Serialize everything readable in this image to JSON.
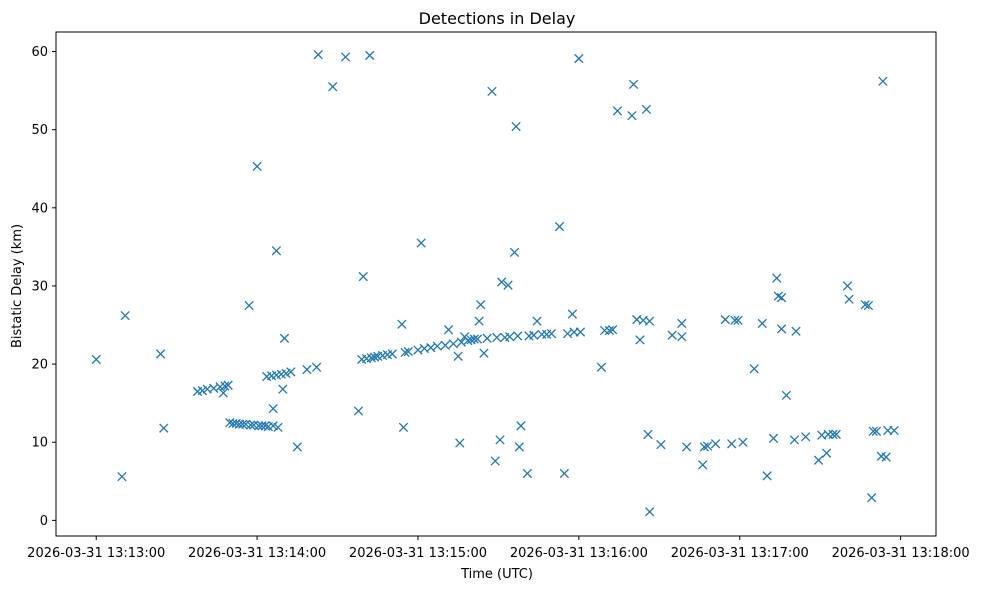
{
  "chart_data": {
    "type": "scatter",
    "title": "Detections in Delay",
    "xlabel": "Time (UTC)",
    "ylabel": "Bistatic Delay (km)",
    "marker": "x",
    "color": "#1f77b4",
    "x_unit": "minutes since 2026-03-31 13:13:00",
    "xlim": [
      -0.25,
      5.22
    ],
    "ylim": [
      -2.0,
      62.5
    ],
    "x_ticks": [
      {
        "value": 0,
        "label": "2026-03-31 13:13:00"
      },
      {
        "value": 1,
        "label": "2026-03-31 13:14:00"
      },
      {
        "value": 2,
        "label": "2026-03-31 13:15:00"
      },
      {
        "value": 3,
        "label": "2026-03-31 13:16:00"
      },
      {
        "value": 4,
        "label": "2026-03-31 13:17:00"
      },
      {
        "value": 5,
        "label": "2026-03-31 13:18:00"
      }
    ],
    "y_ticks": [
      {
        "value": 0,
        "label": "0"
      },
      {
        "value": 10,
        "label": "10"
      },
      {
        "value": 20,
        "label": "20"
      },
      {
        "value": 30,
        "label": "30"
      },
      {
        "value": 40,
        "label": "40"
      },
      {
        "value": 50,
        "label": "50"
      },
      {
        "value": 60,
        "label": "60"
      }
    ],
    "points": [
      [
        0.0,
        20.6
      ],
      [
        0.16,
        5.6
      ],
      [
        0.18,
        26.2
      ],
      [
        0.4,
        21.3
      ],
      [
        0.42,
        11.8
      ],
      [
        0.63,
        16.5
      ],
      [
        0.66,
        16.6
      ],
      [
        0.69,
        16.8
      ],
      [
        0.73,
        16.9
      ],
      [
        0.77,
        17.1
      ],
      [
        0.79,
        16.3
      ],
      [
        0.8,
        17.2
      ],
      [
        0.82,
        17.3
      ],
      [
        0.83,
        12.5
      ],
      [
        0.85,
        12.4
      ],
      [
        0.87,
        12.4
      ],
      [
        0.89,
        12.3
      ],
      [
        0.91,
        12.3
      ],
      [
        0.93,
        12.3
      ],
      [
        0.95,
        27.5
      ],
      [
        0.96,
        12.2
      ],
      [
        0.98,
        12.2
      ],
      [
        1.0,
        45.3
      ],
      [
        1.01,
        12.1
      ],
      [
        1.03,
        12.1
      ],
      [
        1.05,
        12.1
      ],
      [
        1.06,
        18.4
      ],
      [
        1.07,
        12.0
      ],
      [
        1.09,
        18.5
      ],
      [
        1.1,
        12.1
      ],
      [
        1.1,
        14.3
      ],
      [
        1.12,
        18.6
      ],
      [
        1.12,
        34.5
      ],
      [
        1.13,
        11.9
      ],
      [
        1.15,
        18.7
      ],
      [
        1.16,
        16.8
      ],
      [
        1.17,
        23.3
      ],
      [
        1.18,
        18.8
      ],
      [
        1.21,
        19.0
      ],
      [
        1.25,
        9.4
      ],
      [
        1.31,
        19.3
      ],
      [
        1.37,
        19.6
      ],
      [
        1.38,
        59.6
      ],
      [
        1.47,
        55.5
      ],
      [
        1.55,
        59.3
      ],
      [
        1.63,
        14.0
      ],
      [
        1.65,
        20.6
      ],
      [
        1.66,
        31.2
      ],
      [
        1.68,
        20.7
      ],
      [
        1.7,
        59.5
      ],
      [
        1.71,
        20.8
      ],
      [
        1.73,
        20.9
      ],
      [
        1.75,
        21.0
      ],
      [
        1.78,
        21.1
      ],
      [
        1.81,
        21.2
      ],
      [
        1.84,
        21.3
      ],
      [
        1.9,
        25.1
      ],
      [
        1.91,
        11.9
      ],
      [
        1.92,
        21.5
      ],
      [
        1.94,
        21.6
      ],
      [
        2.0,
        21.8
      ],
      [
        2.02,
        35.5
      ],
      [
        2.04,
        22.0
      ],
      [
        2.08,
        22.1
      ],
      [
        2.12,
        22.3
      ],
      [
        2.17,
        22.4
      ],
      [
        2.19,
        24.4
      ],
      [
        2.22,
        22.6
      ],
      [
        2.25,
        21.0
      ],
      [
        2.26,
        9.9
      ],
      [
        2.27,
        22.8
      ],
      [
        2.29,
        23.5
      ],
      [
        2.31,
        23.0
      ],
      [
        2.33,
        23.1
      ],
      [
        2.35,
        23.2
      ],
      [
        2.37,
        23.2
      ],
      [
        2.38,
        25.5
      ],
      [
        2.39,
        27.6
      ],
      [
        2.41,
        21.4
      ],
      [
        2.43,
        23.3
      ],
      [
        2.46,
        54.9
      ],
      [
        2.48,
        7.6
      ],
      [
        2.49,
        23.4
      ],
      [
        2.51,
        10.3
      ],
      [
        2.52,
        30.5
      ],
      [
        2.54,
        23.4
      ],
      [
        2.56,
        30.1
      ],
      [
        2.57,
        23.5
      ],
      [
        2.6,
        34.3
      ],
      [
        2.61,
        50.4
      ],
      [
        2.62,
        23.6
      ],
      [
        2.63,
        9.4
      ],
      [
        2.64,
        12.1
      ],
      [
        2.68,
        6.0
      ],
      [
        2.69,
        23.6
      ],
      [
        2.72,
        23.7
      ],
      [
        2.74,
        25.5
      ],
      [
        2.77,
        23.8
      ],
      [
        2.8,
        23.8
      ],
      [
        2.83,
        23.9
      ],
      [
        2.88,
        37.6
      ],
      [
        2.91,
        6.0
      ],
      [
        2.93,
        23.9
      ],
      [
        2.96,
        26.4
      ],
      [
        2.97,
        24.1
      ],
      [
        3.0,
        59.1
      ],
      [
        3.01,
        24.1
      ],
      [
        3.14,
        19.6
      ],
      [
        3.16,
        24.3
      ],
      [
        3.19,
        24.3
      ],
      [
        3.21,
        24.4
      ],
      [
        3.24,
        52.4
      ],
      [
        3.33,
        51.8
      ],
      [
        3.34,
        55.8
      ],
      [
        3.36,
        25.7
      ],
      [
        3.38,
        23.1
      ],
      [
        3.4,
        25.6
      ],
      [
        3.42,
        52.6
      ],
      [
        3.43,
        11.0
      ],
      [
        3.44,
        1.1
      ],
      [
        3.44,
        25.5
      ],
      [
        3.51,
        9.7
      ],
      [
        3.58,
        23.7
      ],
      [
        3.64,
        23.5
      ],
      [
        3.64,
        25.2
      ],
      [
        3.67,
        9.4
      ],
      [
        3.77,
        7.1
      ],
      [
        3.78,
        9.4
      ],
      [
        3.8,
        9.5
      ],
      [
        3.85,
        9.8
      ],
      [
        3.91,
        25.7
      ],
      [
        3.95,
        9.8
      ],
      [
        3.97,
        25.6
      ],
      [
        3.99,
        25.6
      ],
      [
        4.02,
        10.0
      ],
      [
        4.09,
        19.4
      ],
      [
        4.14,
        25.2
      ],
      [
        4.17,
        5.7
      ],
      [
        4.21,
        10.5
      ],
      [
        4.23,
        31.0
      ],
      [
        4.24,
        28.7
      ],
      [
        4.26,
        28.5
      ],
      [
        4.26,
        24.5
      ],
      [
        4.29,
        16.0
      ],
      [
        4.34,
        10.3
      ],
      [
        4.35,
        24.2
      ],
      [
        4.41,
        10.7
      ],
      [
        4.49,
        7.7
      ],
      [
        4.51,
        10.9
      ],
      [
        4.54,
        8.6
      ],
      [
        4.55,
        11.0
      ],
      [
        4.58,
        11.0
      ],
      [
        4.6,
        11.0
      ],
      [
        4.67,
        30.0
      ],
      [
        4.68,
        28.3
      ],
      [
        4.78,
        27.6
      ],
      [
        4.8,
        27.5
      ],
      [
        4.82,
        2.9
      ],
      [
        4.83,
        11.4
      ],
      [
        4.85,
        11.4
      ],
      [
        4.88,
        8.2
      ],
      [
        4.89,
        56.2
      ],
      [
        4.91,
        8.1
      ],
      [
        4.92,
        11.5
      ],
      [
        4.96,
        11.5
      ]
    ]
  }
}
